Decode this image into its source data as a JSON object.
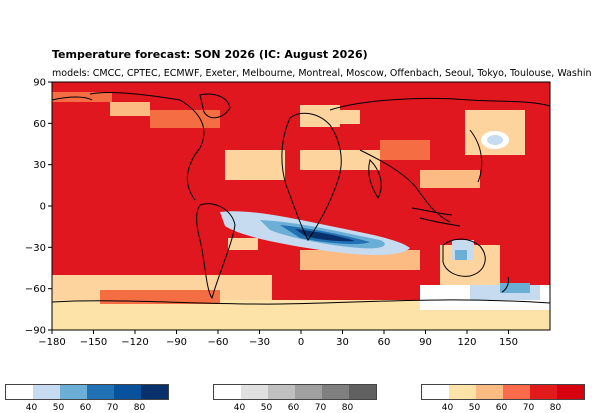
{
  "title": "Temperature forecast: SON 2026 (IC: August 2026)",
  "subtitle": "models: CMCC, CPTEC, ECMWF, Exeter, Melbourne, Montreal, Moscow, Offenbach, Seoul, Tokyo, Toulouse, Washin",
  "chart_data": {
    "type": "heatmap",
    "title": "Temperature forecast: SON 2026 (IC: August 2026)",
    "xlim": [
      -180,
      180
    ],
    "ylim": [
      -90,
      90
    ],
    "x_ticks": [
      "−180",
      "−150",
      "−120",
      "−90",
      "−60",
      "−30",
      "0",
      "30",
      "60",
      "90",
      "120",
      "150"
    ],
    "y_ticks": [
      "90",
      "60",
      "30",
      "0",
      "−30",
      "−60",
      "−90"
    ],
    "colorbars": [
      {
        "name": "below",
        "labels": [
          "40",
          "50",
          "60",
          "70",
          "80"
        ],
        "colors": [
          "#ffffff",
          "#c6dbef",
          "#6baed6",
          "#2171b5",
          "#08519c",
          "#08306b"
        ]
      },
      {
        "name": "normal",
        "labels": [
          "40",
          "50",
          "60",
          "70",
          "80"
        ],
        "colors": [
          "#ffffff",
          "#e0e0e0",
          "#c0c0c0",
          "#a0a0a0",
          "#808080",
          "#606060"
        ]
      },
      {
        "name": "above",
        "labels": [
          "40",
          "50",
          "60",
          "70",
          "80"
        ],
        "colors": [
          "#ffffff",
          "#fde3a7",
          "#fdbb84",
          "#fb6a4a",
          "#e31a1c",
          "#d7000f"
        ]
      }
    ]
  },
  "colors": {
    "above_strong": "#e0171e",
    "above_mid": "#f46d43",
    "above_light": "#fdd49e",
    "below_strong": "#08306b",
    "below_mid": "#2171b5",
    "below_light": "#c6dbef",
    "neutral": "#f7f7f7"
  }
}
